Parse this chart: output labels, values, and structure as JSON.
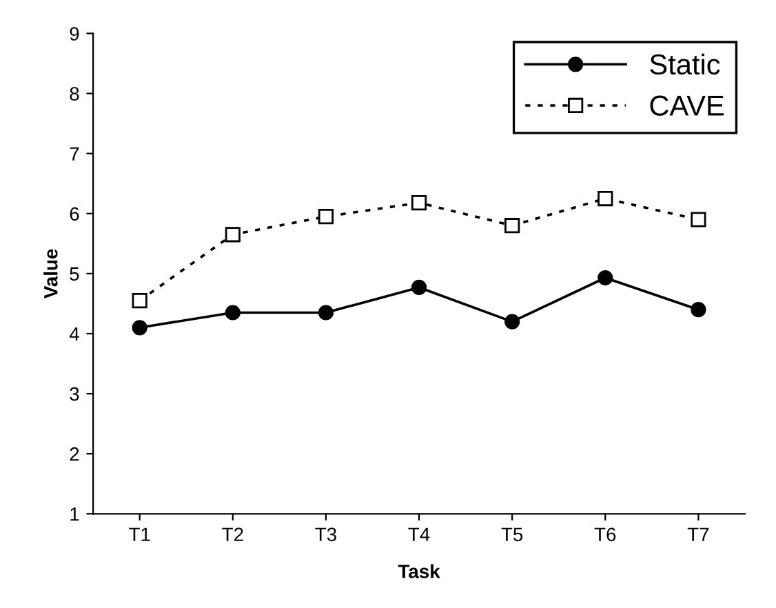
{
  "chart_data": {
    "type": "line",
    "xlabel": "Task",
    "ylabel": "Value",
    "categories": [
      "T1",
      "T2",
      "T3",
      "T4",
      "T5",
      "T6",
      "T7"
    ],
    "series": [
      {
        "name": "Static",
        "color": "#000000",
        "marker": "circle",
        "line_style": "solid",
        "values": [
          4.1,
          4.35,
          4.35,
          4.77,
          4.2,
          4.93,
          4.4
        ]
      },
      {
        "name": "CAVE",
        "color": "#000000",
        "marker": "square",
        "line_style": "dotted",
        "values": [
          4.55,
          5.65,
          5.95,
          6.18,
          5.8,
          6.25,
          5.9
        ]
      }
    ],
    "ylim": [
      1,
      9
    ],
    "yticks": [
      1,
      2,
      3,
      4,
      5,
      6,
      7,
      8,
      9
    ],
    "grid": false,
    "legend": "top right"
  }
}
